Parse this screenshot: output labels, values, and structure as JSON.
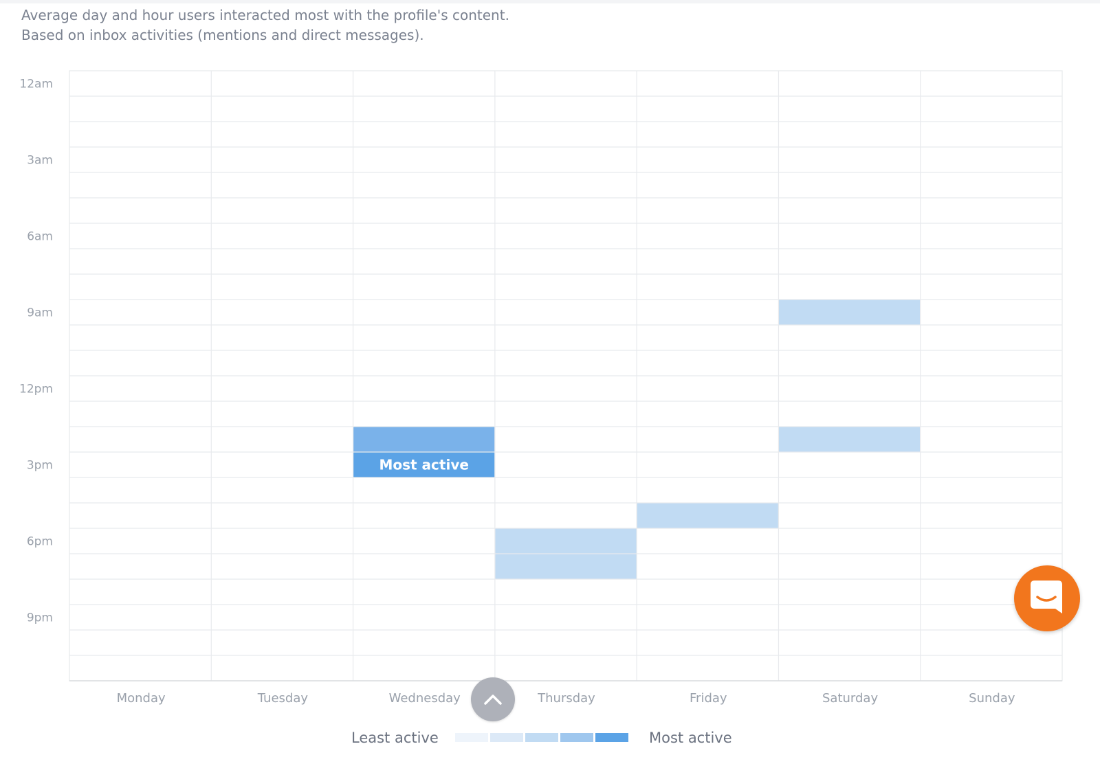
{
  "description": {
    "line1": "Average day and hour users interacted most with the profile's content.",
    "line2": "Based on inbox activities (mentions and direct messages)."
  },
  "chart_data": {
    "type": "heatmap",
    "title": "",
    "days": [
      "Monday",
      "Tuesday",
      "Wednesday",
      "Thursday",
      "Friday",
      "Saturday",
      "Sunday"
    ],
    "hour_ticks": [
      {
        "hour": 0,
        "label": "12am"
      },
      {
        "hour": 3,
        "label": "3am"
      },
      {
        "hour": 6,
        "label": "6am"
      },
      {
        "hour": 9,
        "label": "9am"
      },
      {
        "hour": 12,
        "label": "12pm"
      },
      {
        "hour": 15,
        "label": "3pm"
      },
      {
        "hour": 18,
        "label": "6pm"
      },
      {
        "hour": 21,
        "label": "9pm"
      }
    ],
    "hours_range": [
      0,
      24
    ],
    "levels": 5,
    "cells": [
      {
        "day": "Saturday",
        "hour": 9,
        "level": 3
      },
      {
        "day": "Wednesday",
        "hour": 14,
        "level": 4
      },
      {
        "day": "Saturday",
        "hour": 14,
        "level": 3
      },
      {
        "day": "Wednesday",
        "hour": 15,
        "level": 5,
        "label": "Most active"
      },
      {
        "day": "Friday",
        "hour": 17,
        "level": 3
      },
      {
        "day": "Thursday",
        "hour": 18,
        "level": 3
      },
      {
        "day": "Thursday",
        "hour": 19,
        "level": 3
      }
    ],
    "level_colors": [
      "#eef4fb",
      "#dce9f7",
      "#c1dbf3",
      "#9fc7ee",
      "#5ba3e6"
    ],
    "highlight_color": "#7ab2ea",
    "grid": true
  },
  "legend": {
    "least_label": "Least active",
    "most_label": "Most active"
  },
  "icons": {
    "scroll_top": "chevron-up-icon",
    "chat": "chat-icon"
  },
  "colors": {
    "chat_button": "#f2761d",
    "scroll_button": "#aeb1b9"
  }
}
